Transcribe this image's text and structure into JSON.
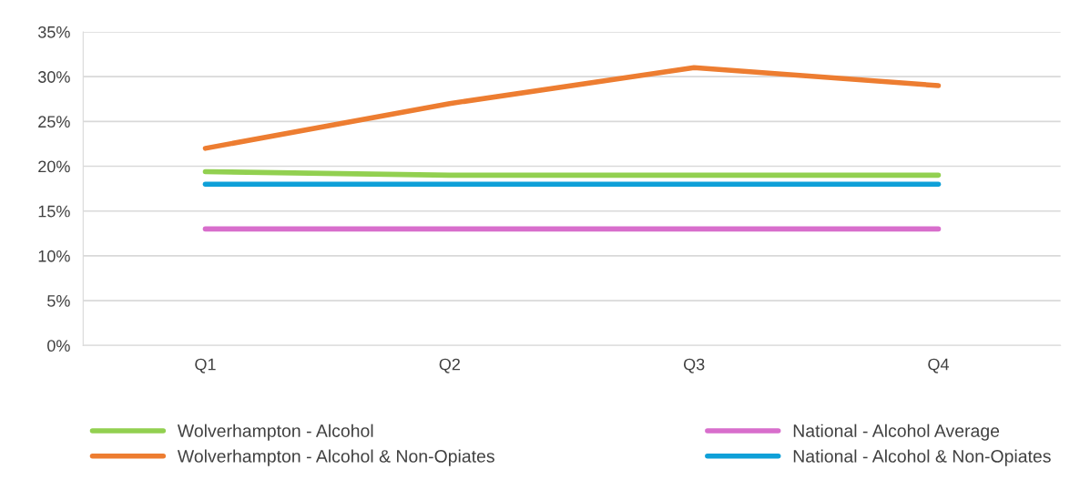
{
  "chart_data": {
    "type": "line",
    "categories": [
      "Q1",
      "Q2",
      "Q3",
      "Q4"
    ],
    "series": [
      {
        "name": "Wolverhampton - Alcohol",
        "color": "#92d050",
        "values": [
          19.4,
          19,
          19,
          19
        ]
      },
      {
        "name": "Wolverhampton - Alcohol & Non-Opiates",
        "color": "#ed7d31",
        "values": [
          22,
          27,
          31,
          29
        ]
      },
      {
        "name": "National - Alcohol Average",
        "color": "#d86ecc",
        "values": [
          13,
          13,
          13,
          13
        ]
      },
      {
        "name": "National - Alcohol & Non-Opiates",
        "color": "#0fa0d8",
        "values": [
          18,
          18,
          18,
          18
        ]
      }
    ],
    "ylim": [
      0,
      35
    ],
    "yticks": [
      {
        "value": 0,
        "label": "0%"
      },
      {
        "value": 5,
        "label": "5%"
      },
      {
        "value": 10,
        "label": "10%"
      },
      {
        "value": 15,
        "label": "15%"
      },
      {
        "value": 20,
        "label": "20%"
      },
      {
        "value": 25,
        "label": "25%"
      },
      {
        "value": 30,
        "label": "30%"
      },
      {
        "value": 35,
        "label": "35%"
      }
    ],
    "grid": "y",
    "legend": "bottom",
    "marker": "none",
    "line_style": "solid"
  }
}
